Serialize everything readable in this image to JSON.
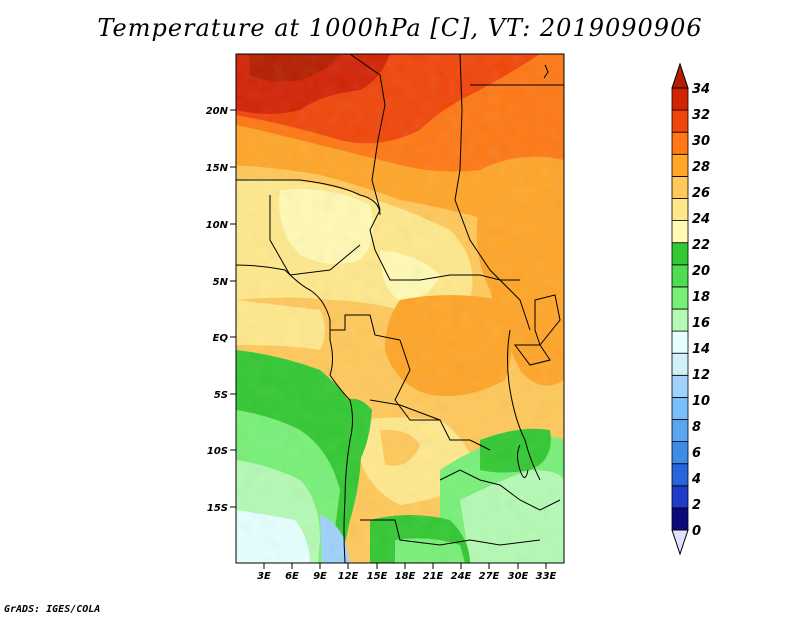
{
  "title": "Temperature at 1000hPa [C], VT: 2019090906",
  "credit": "GrADS: IGES/COLA",
  "map": {
    "lat_labels": [
      "20N",
      "15N",
      "10N",
      "5N",
      "EQ",
      "5S",
      "10S",
      "15S"
    ],
    "lon_labels": [
      "3E",
      "6E",
      "9E",
      "12E",
      "15E",
      "18E",
      "21E",
      "24E",
      "27E",
      "30E",
      "33E"
    ]
  },
  "colorbar": {
    "labels": [
      "34",
      "32",
      "30",
      "28",
      "26",
      "24",
      "22",
      "20",
      "18",
      "16",
      "14",
      "12",
      "10",
      "8",
      "6",
      "4",
      "2",
      "0"
    ],
    "colors": [
      "#e0e0ff",
      "#0a0a78",
      "#1e3cc8",
      "#2864dc",
      "#3c8ce6",
      "#5aa5f0",
      "#78befa",
      "#a0d2fa",
      "#d2f0fa",
      "#e6ffff",
      "#b4fab4",
      "#78f078",
      "#50dc50",
      "#32c832",
      "#fffab4",
      "#ffe88c",
      "#ffc85a",
      "#ffa528",
      "#ff7814",
      "#f0460a",
      "#d22305",
      "#b41e00"
    ]
  }
}
